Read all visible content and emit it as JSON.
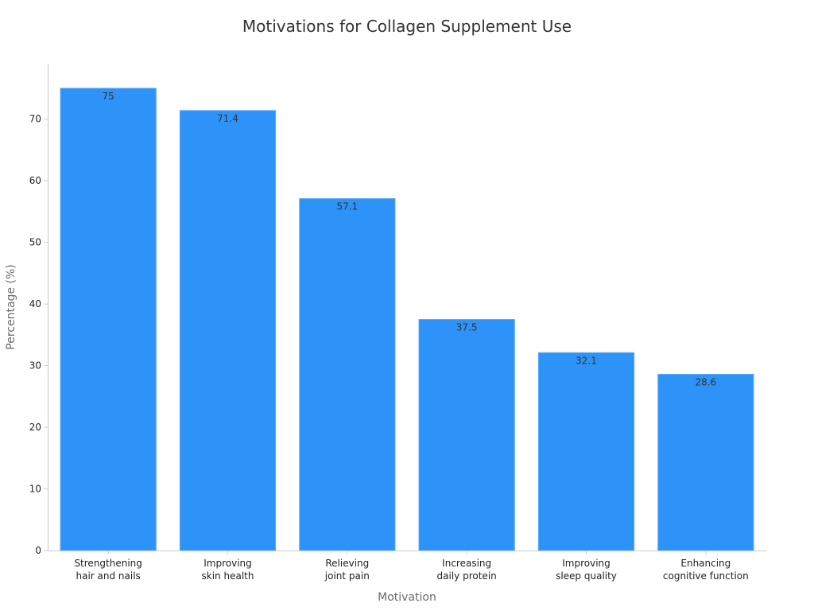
{
  "chart_data": {
    "type": "bar",
    "title": "Motivations for Collagen Supplement Use",
    "xlabel": "Motivation",
    "ylabel": "Percentage (%)",
    "categories": [
      [
        "Strengthening",
        "hair and nails"
      ],
      [
        "Improving",
        "skin health"
      ],
      [
        "Relieving",
        "joint pain"
      ],
      [
        "Increasing",
        "daily protein"
      ],
      [
        "Improving",
        "sleep quality"
      ],
      [
        "Enhancing",
        "cognitive function"
      ]
    ],
    "values": [
      75,
      71.4,
      57.1,
      37.5,
      32.1,
      28.6
    ],
    "value_labels": [
      "75",
      "71.4",
      "57.1",
      "37.5",
      "32.1",
      "28.6"
    ],
    "ylim": [
      0,
      79
    ],
    "yticks": [
      0,
      10,
      20,
      30,
      40,
      50,
      60,
      70
    ],
    "grid": false,
    "legend": "none",
    "colors": {
      "bar_fill": "#2e93f8",
      "bar_stroke": "#5aaaf6",
      "axis": "#cccccc",
      "text": "#222222"
    }
  }
}
